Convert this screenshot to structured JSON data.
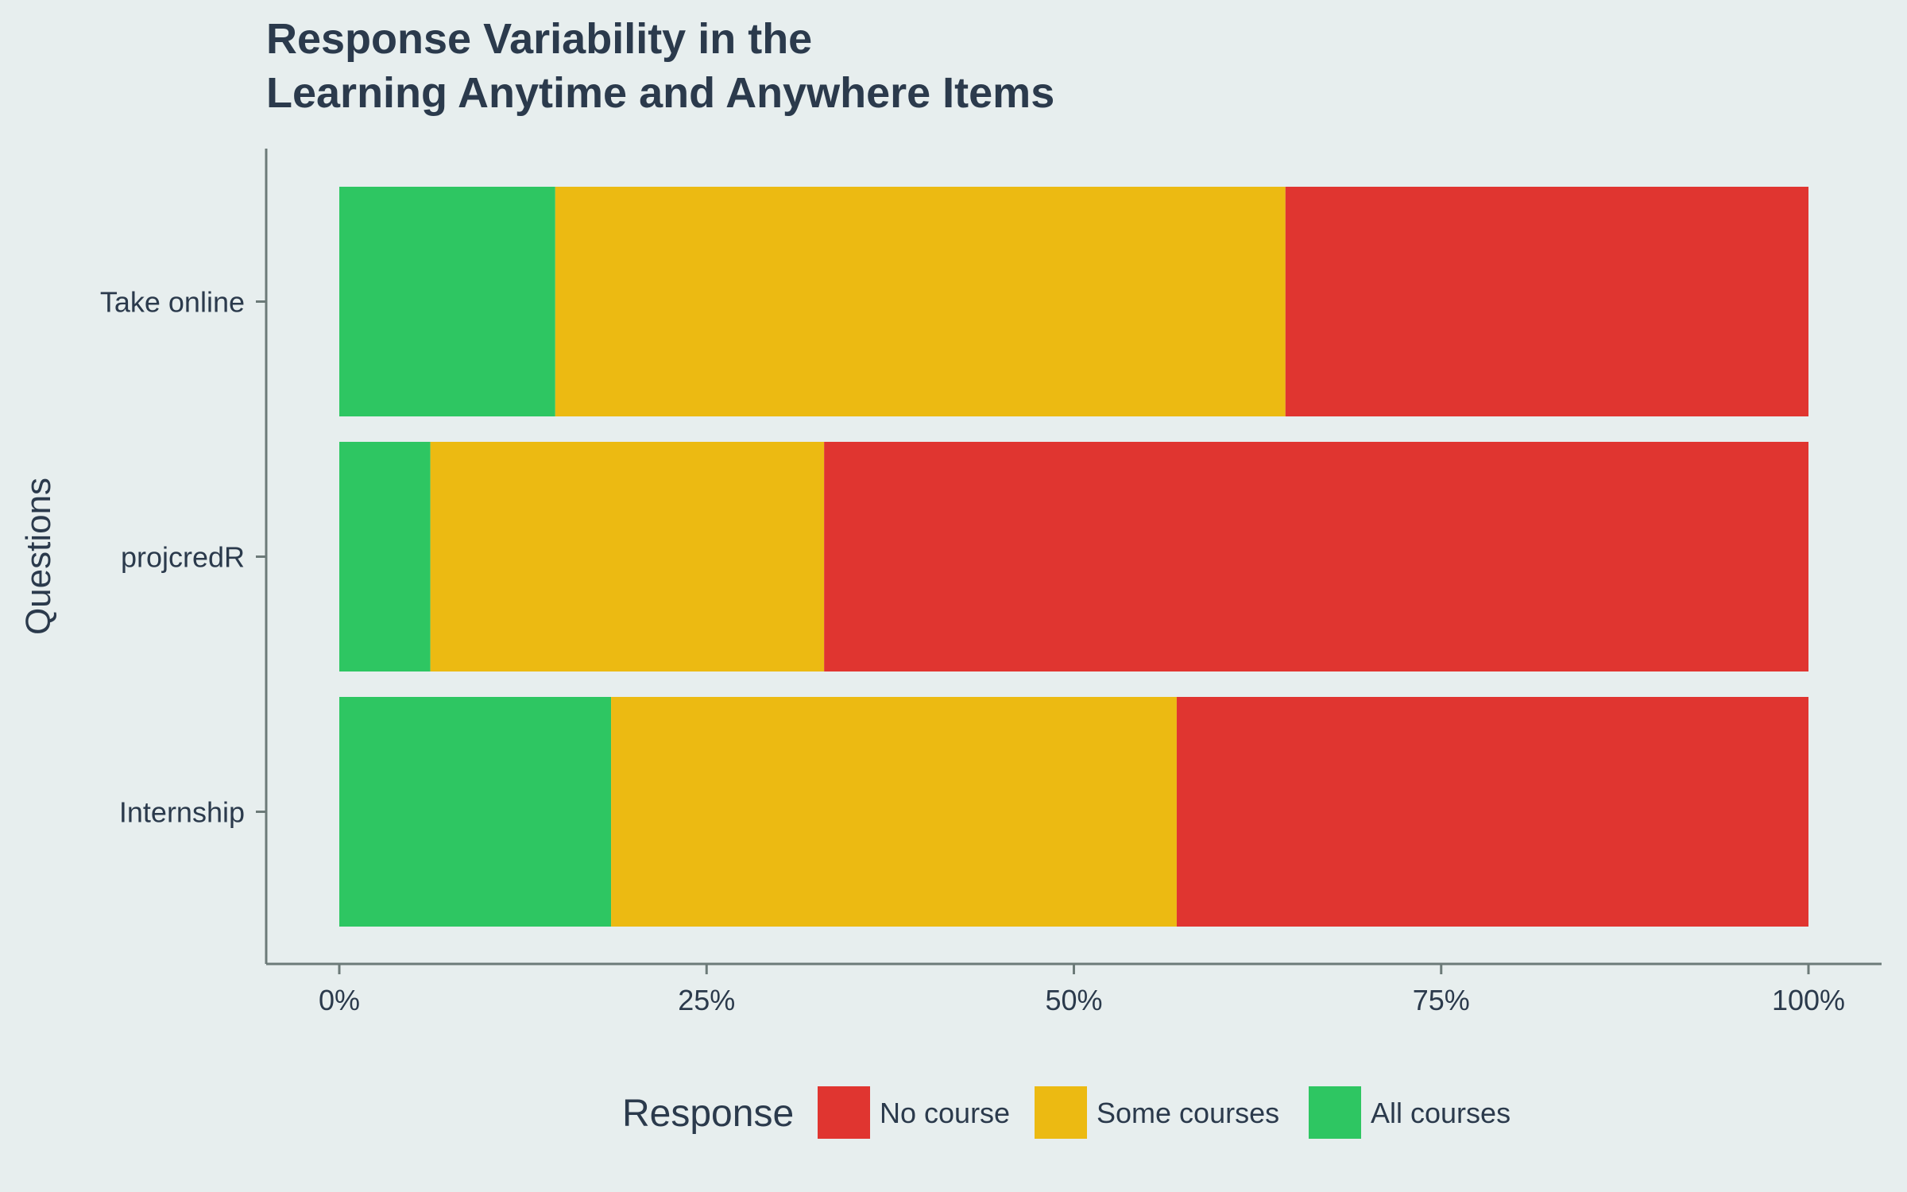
{
  "chart_data": {
    "type": "bar",
    "orientation": "horizontal",
    "stacked": "percent",
    "title_lines": [
      "Response Variability in the",
      "Learning Anytime and Anywhere Items"
    ],
    "xlabel": "",
    "ylabel": "Questions",
    "xlim": [
      0,
      100
    ],
    "x_ticks": [
      "0%",
      "25%",
      "50%",
      "75%",
      "100%"
    ],
    "x_tick_values": [
      0,
      25,
      50,
      75,
      100
    ],
    "categories": [
      "Take online",
      "projcredR",
      "Internship"
    ],
    "series": [
      {
        "name": "All courses",
        "color": "#2EC662",
        "values": [
          14.7,
          6.2,
          18.5
        ]
      },
      {
        "name": "Some courses",
        "color": "#ECBA12",
        "values": [
          49.7,
          26.8,
          38.5
        ]
      },
      {
        "name": "No course",
        "color": "#E03530",
        "values": [
          35.6,
          67.0,
          43.0
        ]
      }
    ],
    "legend": {
      "title": "Response",
      "position": "bottom",
      "order": [
        "No course",
        "Some courses",
        "All courses"
      ]
    },
    "grid": false,
    "colors": {
      "background": "#E7EEEE",
      "axis": "#6C7A78",
      "text": "#2B3A4C"
    }
  }
}
